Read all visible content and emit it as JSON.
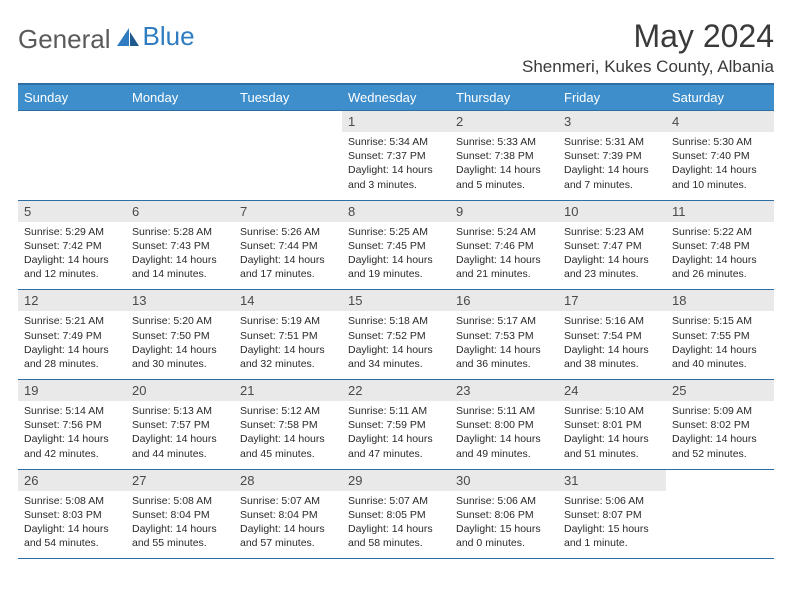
{
  "brand": {
    "part1": "General",
    "part2": "Blue"
  },
  "title": "May 2024",
  "location": "Shenmeri, Kukes County, Albania",
  "dayNames": [
    "Sunday",
    "Monday",
    "Tuesday",
    "Wednesday",
    "Thursday",
    "Friday",
    "Saturday"
  ],
  "colors": {
    "header_bg": "#3d8ecb",
    "header_border": "#2e6da4",
    "daynum_bg": "#e9e9e9",
    "logo_gray": "#5a5a5a",
    "logo_blue": "#2f7cc0"
  },
  "startOffset": 3,
  "days": [
    {
      "n": 1,
      "sr": "5:34 AM",
      "ss": "7:37 PM",
      "dl": "14 hours and 3 minutes."
    },
    {
      "n": 2,
      "sr": "5:33 AM",
      "ss": "7:38 PM",
      "dl": "14 hours and 5 minutes."
    },
    {
      "n": 3,
      "sr": "5:31 AM",
      "ss": "7:39 PM",
      "dl": "14 hours and 7 minutes."
    },
    {
      "n": 4,
      "sr": "5:30 AM",
      "ss": "7:40 PM",
      "dl": "14 hours and 10 minutes."
    },
    {
      "n": 5,
      "sr": "5:29 AM",
      "ss": "7:42 PM",
      "dl": "14 hours and 12 minutes."
    },
    {
      "n": 6,
      "sr": "5:28 AM",
      "ss": "7:43 PM",
      "dl": "14 hours and 14 minutes."
    },
    {
      "n": 7,
      "sr": "5:26 AM",
      "ss": "7:44 PM",
      "dl": "14 hours and 17 minutes."
    },
    {
      "n": 8,
      "sr": "5:25 AM",
      "ss": "7:45 PM",
      "dl": "14 hours and 19 minutes."
    },
    {
      "n": 9,
      "sr": "5:24 AM",
      "ss": "7:46 PM",
      "dl": "14 hours and 21 minutes."
    },
    {
      "n": 10,
      "sr": "5:23 AM",
      "ss": "7:47 PM",
      "dl": "14 hours and 23 minutes."
    },
    {
      "n": 11,
      "sr": "5:22 AM",
      "ss": "7:48 PM",
      "dl": "14 hours and 26 minutes."
    },
    {
      "n": 12,
      "sr": "5:21 AM",
      "ss": "7:49 PM",
      "dl": "14 hours and 28 minutes."
    },
    {
      "n": 13,
      "sr": "5:20 AM",
      "ss": "7:50 PM",
      "dl": "14 hours and 30 minutes."
    },
    {
      "n": 14,
      "sr": "5:19 AM",
      "ss": "7:51 PM",
      "dl": "14 hours and 32 minutes."
    },
    {
      "n": 15,
      "sr": "5:18 AM",
      "ss": "7:52 PM",
      "dl": "14 hours and 34 minutes."
    },
    {
      "n": 16,
      "sr": "5:17 AM",
      "ss": "7:53 PM",
      "dl": "14 hours and 36 minutes."
    },
    {
      "n": 17,
      "sr": "5:16 AM",
      "ss": "7:54 PM",
      "dl": "14 hours and 38 minutes."
    },
    {
      "n": 18,
      "sr": "5:15 AM",
      "ss": "7:55 PM",
      "dl": "14 hours and 40 minutes."
    },
    {
      "n": 19,
      "sr": "5:14 AM",
      "ss": "7:56 PM",
      "dl": "14 hours and 42 minutes."
    },
    {
      "n": 20,
      "sr": "5:13 AM",
      "ss": "7:57 PM",
      "dl": "14 hours and 44 minutes."
    },
    {
      "n": 21,
      "sr": "5:12 AM",
      "ss": "7:58 PM",
      "dl": "14 hours and 45 minutes."
    },
    {
      "n": 22,
      "sr": "5:11 AM",
      "ss": "7:59 PM",
      "dl": "14 hours and 47 minutes."
    },
    {
      "n": 23,
      "sr": "5:11 AM",
      "ss": "8:00 PM",
      "dl": "14 hours and 49 minutes."
    },
    {
      "n": 24,
      "sr": "5:10 AM",
      "ss": "8:01 PM",
      "dl": "14 hours and 51 minutes."
    },
    {
      "n": 25,
      "sr": "5:09 AM",
      "ss": "8:02 PM",
      "dl": "14 hours and 52 minutes."
    },
    {
      "n": 26,
      "sr": "5:08 AM",
      "ss": "8:03 PM",
      "dl": "14 hours and 54 minutes."
    },
    {
      "n": 27,
      "sr": "5:08 AM",
      "ss": "8:04 PM",
      "dl": "14 hours and 55 minutes."
    },
    {
      "n": 28,
      "sr": "5:07 AM",
      "ss": "8:04 PM",
      "dl": "14 hours and 57 minutes."
    },
    {
      "n": 29,
      "sr": "5:07 AM",
      "ss": "8:05 PM",
      "dl": "14 hours and 58 minutes."
    },
    {
      "n": 30,
      "sr": "5:06 AM",
      "ss": "8:06 PM",
      "dl": "15 hours and 0 minutes."
    },
    {
      "n": 31,
      "sr": "5:06 AM",
      "ss": "8:07 PM",
      "dl": "15 hours and 1 minute."
    }
  ],
  "labels": {
    "sunrise": "Sunrise:",
    "sunset": "Sunset:",
    "daylight": "Daylight:"
  }
}
